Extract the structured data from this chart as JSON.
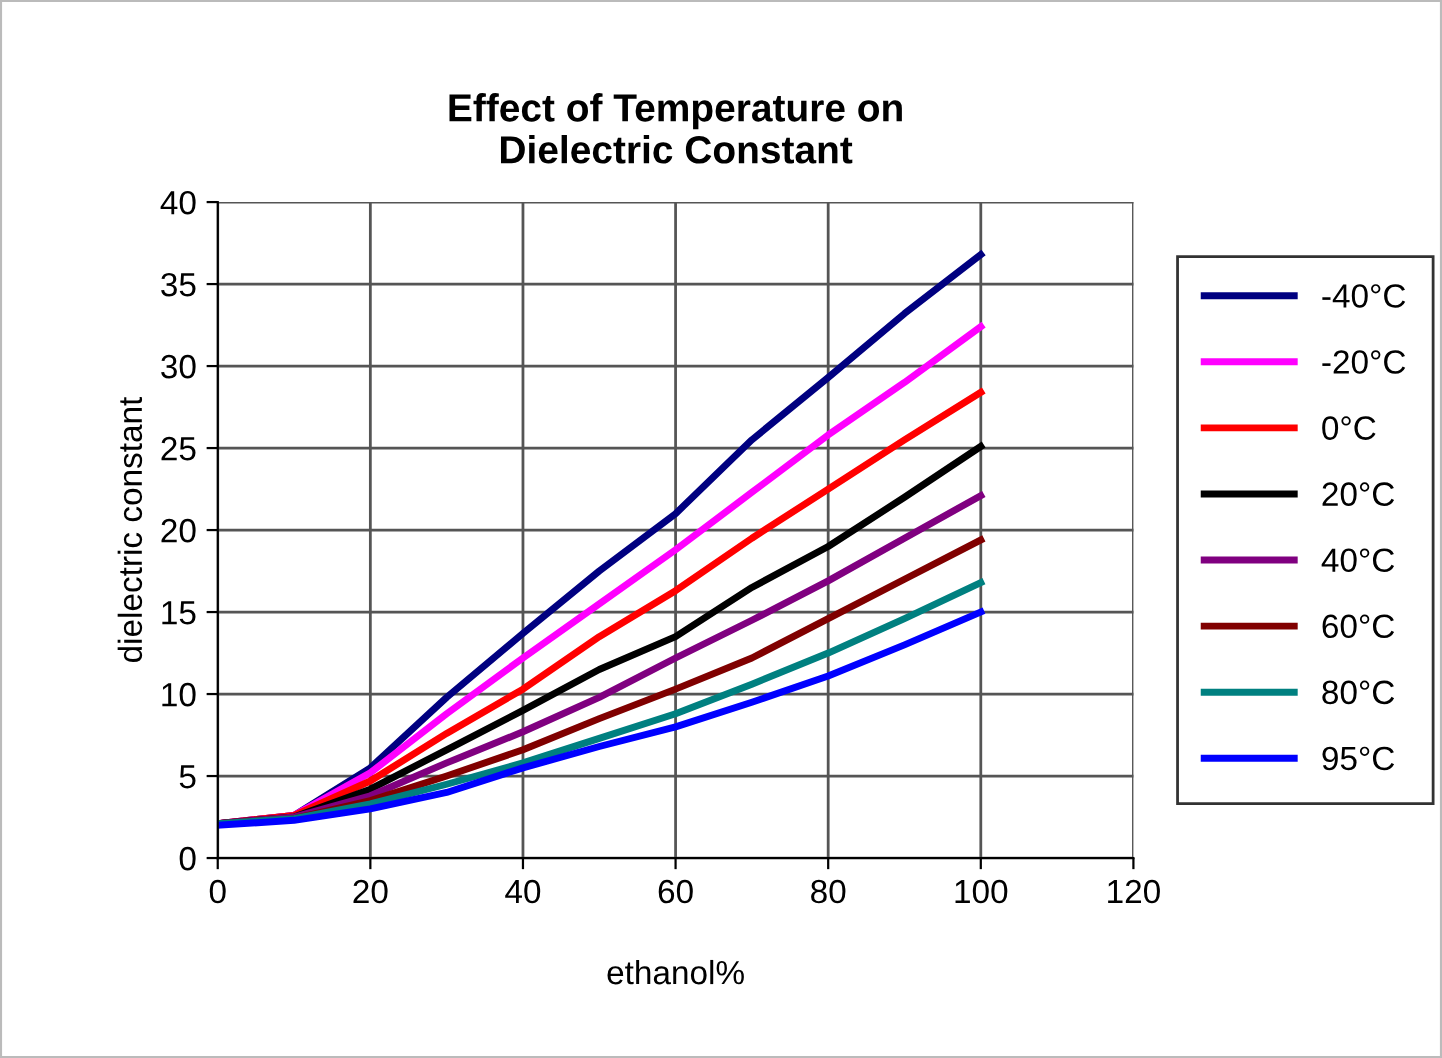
{
  "chart_data": {
    "type": "line",
    "title": "Effect of Temperature on\nDielectric Constant",
    "xlabel": "ethanol%",
    "ylabel": "dielectric constant",
    "x": [
      0,
      10,
      20,
      30,
      40,
      50,
      60,
      70,
      80,
      90,
      100
    ],
    "series": [
      {
        "name": "-40°C",
        "color": "#000080",
        "values": [
          2.1,
          2.6,
          5.5,
          9.8,
          13.7,
          17.5,
          21,
          25.5,
          29.3,
          33.2,
          36.8
        ]
      },
      {
        "name": "-20°C",
        "color": "#ff00ff",
        "values": [
          2.1,
          2.6,
          5.2,
          8.8,
          12.2,
          15.5,
          18.8,
          22.3,
          25.8,
          29,
          32.4
        ]
      },
      {
        "name": "0°C",
        "color": "#ff0000",
        "values": [
          2.1,
          2.6,
          4.7,
          7.6,
          10.3,
          13.5,
          16.3,
          19.5,
          22.5,
          25.5,
          28.4
        ]
      },
      {
        "name": "20°C",
        "color": "#000000",
        "values": [
          2.1,
          2.5,
          4.2,
          6.6,
          9,
          11.5,
          13.5,
          16.5,
          19,
          22,
          25.1
        ]
      },
      {
        "name": "40°C",
        "color": "#800080",
        "values": [
          2.1,
          2.5,
          3.8,
          5.8,
          7.7,
          9.8,
          12.2,
          14.5,
          16.9,
          19.5,
          22.1
        ]
      },
      {
        "name": "60°C",
        "color": "#800000",
        "values": [
          2.1,
          2.4,
          3.5,
          5,
          6.6,
          8.5,
          10.3,
          12.2,
          14.6,
          17,
          19.4
        ]
      },
      {
        "name": "80°C",
        "color": "#008080",
        "values": [
          2.1,
          2.4,
          3.3,
          4.5,
          5.8,
          7.3,
          8.8,
          10.6,
          12.5,
          14.6,
          16.8
        ]
      },
      {
        "name": "95°C",
        "color": "#0000ff",
        "values": [
          2,
          2.3,
          3,
          4,
          5.5,
          6.8,
          8,
          9.5,
          11.1,
          13,
          15
        ]
      }
    ],
    "xlim": [
      0,
      120
    ],
    "xticks": [
      0,
      20,
      40,
      60,
      80,
      100,
      120
    ],
    "ylim": [
      0,
      40
    ],
    "yticks": [
      0,
      5,
      10,
      15,
      20,
      25,
      30,
      35,
      40
    ],
    "grid": true,
    "legend": "right",
    "marker": "none",
    "line_style": "solid"
  }
}
